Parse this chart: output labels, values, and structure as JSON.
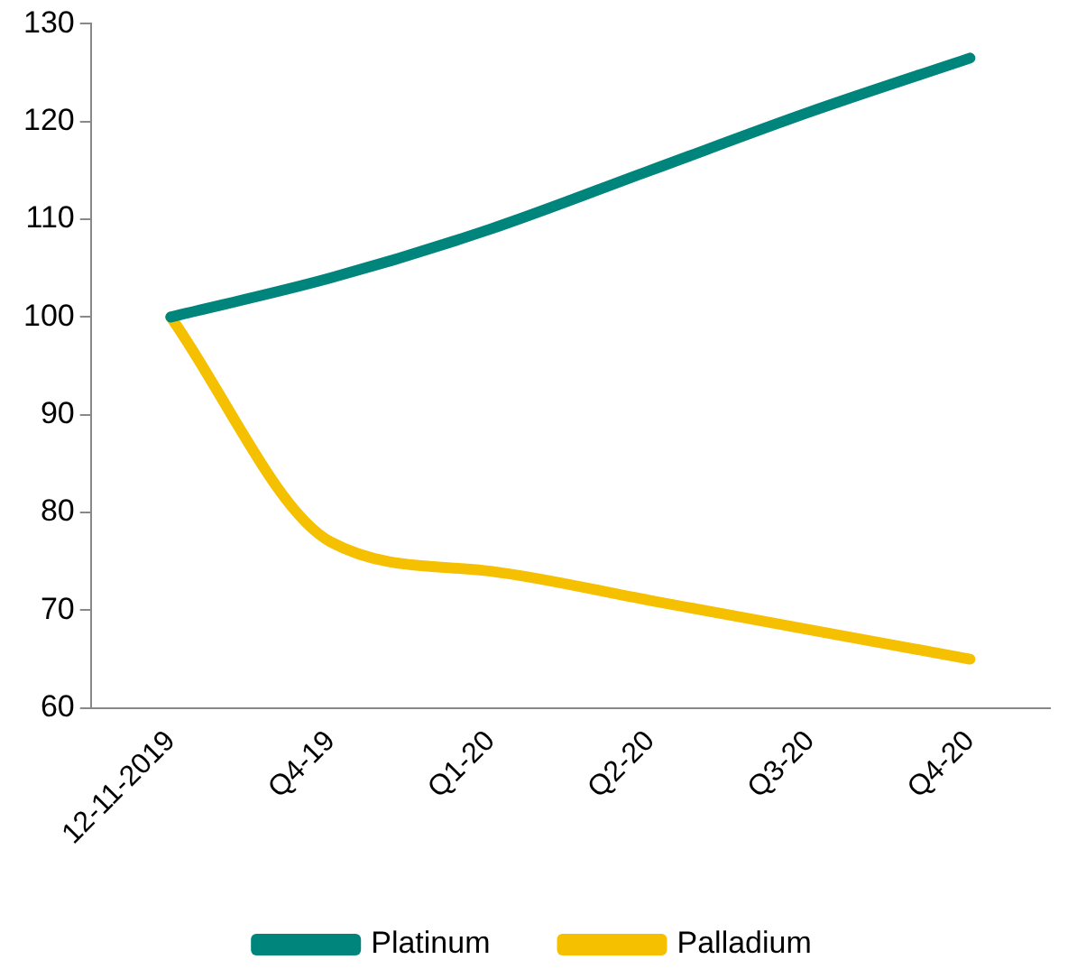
{
  "chart_data": {
    "type": "line",
    "categories": [
      "12-11-2019",
      "Q4-19",
      "Q1-20",
      "Q2-20",
      "Q3-20",
      "Q4-20"
    ],
    "series": [
      {
        "name": "Platinum",
        "color": "#00857c",
        "values": [
          100,
          104,
          109,
          115,
          121,
          126.5
        ]
      },
      {
        "name": "Palladium",
        "color": "#f5c000",
        "values": [
          100,
          77,
          74,
          71,
          68,
          65
        ]
      }
    ],
    "ylim": [
      60,
      130
    ],
    "yticks": [
      60,
      70,
      80,
      90,
      100,
      110,
      120,
      130
    ],
    "grid": false,
    "legend": "bottom",
    "marker": "none",
    "line_style": "solid"
  }
}
